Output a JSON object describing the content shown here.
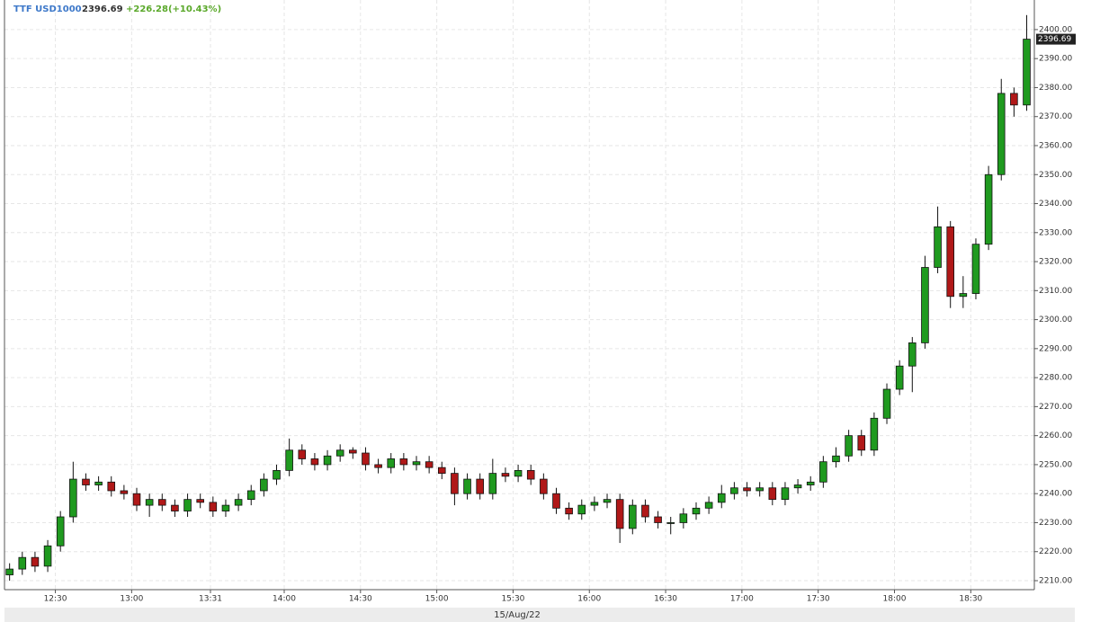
{
  "chart_data": {
    "type": "candlestick",
    "symbol": "TTF USD1000",
    "last": "2396.69",
    "change": "+226.28(+10.43%)",
    "date": "15/Aug/22",
    "up_color": "#1f9a1f",
    "down_color": "#b01818",
    "grid": true,
    "x": [
      "12:12",
      "12:17",
      "12:22",
      "12:27",
      "12:32",
      "12:37",
      "12:42",
      "12:47",
      "12:52",
      "12:57",
      "13:02",
      "13:07",
      "13:12",
      "13:17",
      "13:22",
      "13:27",
      "13:32",
      "13:37",
      "13:42",
      "13:47",
      "13:52",
      "13:57",
      "14:02",
      "14:07",
      "14:12",
      "14:17",
      "14:22",
      "14:27",
      "14:32",
      "14:37",
      "14:42",
      "14:47",
      "14:52",
      "14:57",
      "15:02",
      "15:07",
      "15:12",
      "15:17",
      "15:22",
      "15:27",
      "15:32",
      "15:37",
      "15:42",
      "15:47",
      "15:52",
      "15:57",
      "16:02",
      "16:07",
      "16:12",
      "16:17",
      "16:22",
      "16:27",
      "16:32",
      "16:37",
      "16:42",
      "16:47",
      "16:52",
      "16:57",
      "17:02",
      "17:07",
      "17:12",
      "17:17",
      "17:22",
      "17:27",
      "17:32",
      "17:37",
      "17:42",
      "17:47",
      "17:52",
      "17:57",
      "18:02",
      "18:07",
      "18:12",
      "18:17",
      "18:22",
      "18:27",
      "18:32",
      "18:37",
      "18:42",
      "18:47",
      "18:52"
    ],
    "open": [
      2212,
      2214,
      2218,
      2215,
      2222,
      2232,
      2245,
      2243,
      2244,
      2241,
      2240,
      2236,
      2238,
      2236,
      2234,
      2238,
      2237,
      2234,
      2236,
      2238,
      2241,
      2245,
      2248,
      2255,
      2252,
      2250,
      2253,
      2255,
      2254,
      2250,
      2249,
      2252,
      2250,
      2251,
      2249,
      2247,
      2240,
      2245,
      2240,
      2247,
      2246,
      2248,
      2245,
      2240,
      2235,
      2233,
      2236,
      2237,
      2238,
      2228,
      2236,
      2232,
      2230,
      2230,
      2233,
      2235,
      2237,
      2240,
      2242,
      2241,
      2242,
      2238,
      2242,
      2243,
      2244,
      2251,
      2253,
      2260,
      2255,
      2266,
      2276,
      2284,
      2292,
      2318,
      2332,
      2308,
      2309,
      2326,
      2350,
      2378,
      2374
    ],
    "high": [
      2216,
      2220,
      2220,
      2224,
      2234,
      2251,
      2247,
      2246,
      2246,
      2243,
      2242,
      2240,
      2240,
      2238,
      2240,
      2240,
      2239,
      2238,
      2240,
      2243,
      2247,
      2250,
      2259,
      2257,
      2254,
      2255,
      2257,
      2256,
      2256,
      2252,
      2254,
      2254,
      2253,
      2253,
      2251,
      2249,
      2247,
      2247,
      2252,
      2249,
      2250,
      2250,
      2247,
      2242,
      2237,
      2238,
      2239,
      2240,
      2240,
      2238,
      2238,
      2234,
      2232,
      2235,
      2237,
      2239,
      2243,
      2244,
      2244,
      2244,
      2244,
      2244,
      2245,
      2246,
      2253,
      2256,
      2262,
      2262,
      2268,
      2278,
      2286,
      2294,
      2322,
      2339,
      2334,
      2315,
      2328,
      2353,
      2383,
      2380,
      2405
    ],
    "low": [
      2210,
      2212,
      2213,
      2213,
      2220,
      2230,
      2241,
      2241,
      2239,
      2238,
      2234,
      2232,
      2234,
      2232,
      2232,
      2235,
      2232,
      2232,
      2234,
      2236,
      2239,
      2243,
      2246,
      2250,
      2248,
      2248,
      2251,
      2252,
      2248,
      2247,
      2247,
      2248,
      2248,
      2247,
      2245,
      2236,
      2238,
      2238,
      2238,
      2244,
      2244,
      2243,
      2238,
      2233,
      2231,
      2231,
      2234,
      2235,
      2223,
      2226,
      2230,
      2228,
      2226,
      2228,
      2231,
      2233,
      2235,
      2238,
      2239,
      2239,
      2236,
      2236,
      2240,
      2241,
      2242,
      2249,
      2251,
      2253,
      2253,
      2264,
      2274,
      2275,
      2290,
      2316,
      2304,
      2304,
      2307,
      2324,
      2348,
      2370,
      2372
    ],
    "close": [
      2214,
      2218,
      2215,
      2222,
      2232,
      2245,
      2243,
      2244,
      2241,
      2240,
      2236,
      2238,
      2236,
      2234,
      2238,
      2237,
      2234,
      2236,
      2238,
      2241,
      2245,
      2248,
      2255,
      2252,
      2250,
      2253,
      2255,
      2254,
      2250,
      2249,
      2252,
      2250,
      2251,
      2249,
      2247,
      2240,
      2245,
      2240,
      2247,
      2246,
      2248,
      2245,
      2240,
      2235,
      2233,
      2236,
      2237,
      2238,
      2228,
      2236,
      2232,
      2230,
      2230,
      2233,
      2235,
      2237,
      2240,
      2242,
      2241,
      2242,
      2238,
      2242,
      2243,
      2244,
      2251,
      2253,
      2260,
      2255,
      2266,
      2276,
      2284,
      2292,
      2318,
      2332,
      2308,
      2309,
      2326,
      2350,
      2378,
      2374,
      2396.69
    ],
    "xlim": [
      "12:10",
      "18:55"
    ],
    "xticks": [
      "12:30",
      "13:00",
      "13:31",
      "14:00",
      "14:30",
      "15:00",
      "15:30",
      "16:00",
      "16:30",
      "17:00",
      "17:30",
      "18:00",
      "18:30"
    ],
    "ylim": [
      2206.9,
      2410.2
    ],
    "yticks": [
      {
        "value": 2210,
        "label": "2210.00"
      },
      {
        "value": 2220,
        "label": "2220.00"
      },
      {
        "value": 2230,
        "label": "2230.00"
      },
      {
        "value": 2240,
        "label": "2240.00"
      },
      {
        "value": 2250,
        "label": "2250.00"
      },
      {
        "value": 2260,
        "label": "2260.00"
      },
      {
        "value": 2270,
        "label": "2270.00"
      },
      {
        "value": 2280,
        "label": "2280.00"
      },
      {
        "value": 2290,
        "label": "2290.00"
      },
      {
        "value": 2300,
        "label": "2300.00"
      },
      {
        "value": 2310,
        "label": "2310.00"
      },
      {
        "value": 2320,
        "label": "2320.00"
      },
      {
        "value": 2330,
        "label": "2330.00"
      },
      {
        "value": 2340,
        "label": "2340.00"
      },
      {
        "value": 2350,
        "label": "2350.00"
      },
      {
        "value": 2360,
        "label": "2360.00"
      },
      {
        "value": 2370,
        "label": "2370.00"
      },
      {
        "value": 2380,
        "label": "2380.00"
      },
      {
        "value": 2390,
        "label": "2390.00"
      },
      {
        "value": 2400,
        "label": "2400.00"
      }
    ]
  }
}
